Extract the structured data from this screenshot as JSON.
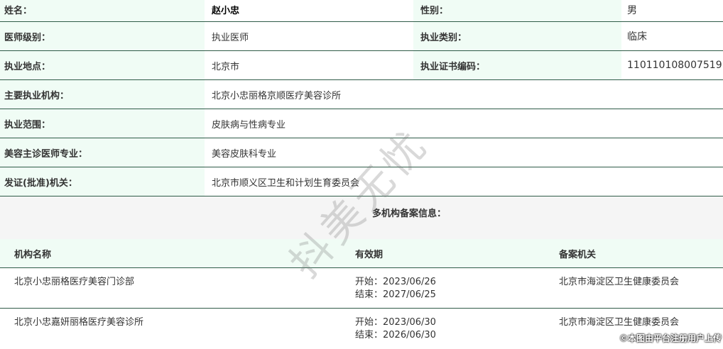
{
  "info": [
    {
      "label": "姓名：",
      "value": "赵小忠",
      "label2": "性别：",
      "value2": "男"
    },
    {
      "label": "医师级别：",
      "value": "执业医师",
      "label2": "执业类别：",
      "value2": "临床"
    },
    {
      "label": "执业地点：",
      "value": "北京市",
      "label2": "执业证书编码：",
      "value2": "110110108007519"
    },
    {
      "label": "主要执业机构：",
      "value": "北京小忠丽格京顺医疗美容诊所"
    },
    {
      "label": "执业范围：",
      "value": "皮肤病与性病专业"
    },
    {
      "label": "美容主诊医师专业：",
      "value": "美容皮肤科专业"
    },
    {
      "label": "发证(批准)机关：",
      "value": "北京市顺义区卫生和计划生育委员会"
    }
  ],
  "multi": {
    "title": "多机构备案信息：",
    "headers": [
      "机构名称",
      "有效期",
      "备案机关"
    ],
    "rows": [
      {
        "name": "北京小忠丽格医疗美容门诊部",
        "start": "开始：2023/06/26",
        "end": "结束：2027/06/25",
        "authority": "北京市海淀区卫生健康委员会"
      },
      {
        "name": "北京小忠嘉妍丽格医疗美容诊所",
        "start": "开始：2023/06/30",
        "end": "结束：2026/06/30",
        "authority": "北京市海淀区卫生健康委员会"
      }
    ]
  },
  "watermark": "抖美无忧",
  "credit": "©本图由平台注册用户上传"
}
